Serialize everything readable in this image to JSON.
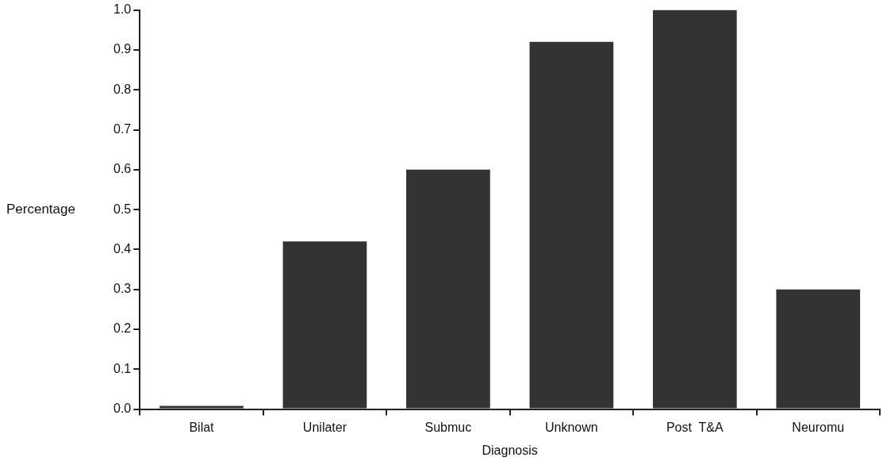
{
  "chart_data": {
    "type": "bar",
    "xlabel": "Diagnosis",
    "ylabel": "Percentage",
    "categories": [
      "Bilat",
      "Unilater",
      "Submuc",
      "Unknown",
      "Post  T&A",
      "Neuromu"
    ],
    "values": [
      0.008,
      0.42,
      0.6,
      0.92,
      1.0,
      0.3
    ],
    "color": "#333333",
    "ylim": [
      0,
      1
    ],
    "yticks": [
      {
        "value": 0,
        "label": "0.0"
      },
      {
        "value": 0.1,
        "label": "0.1"
      },
      {
        "value": 0.2,
        "label": "0.2"
      },
      {
        "value": 0.3,
        "label": "0.3"
      },
      {
        "value": 0.4,
        "label": "0.4"
      },
      {
        "value": 0.5,
        "label": "0.5"
      },
      {
        "value": 0.6,
        "label": "0.6"
      },
      {
        "value": 0.7,
        "label": "0.7"
      },
      {
        "value": 0.8,
        "label": "0.8"
      },
      {
        "value": 0.9,
        "label": "0.9"
      },
      {
        "value": 1,
        "label": "1.0"
      }
    ],
    "grid": false,
    "legend": false
  }
}
